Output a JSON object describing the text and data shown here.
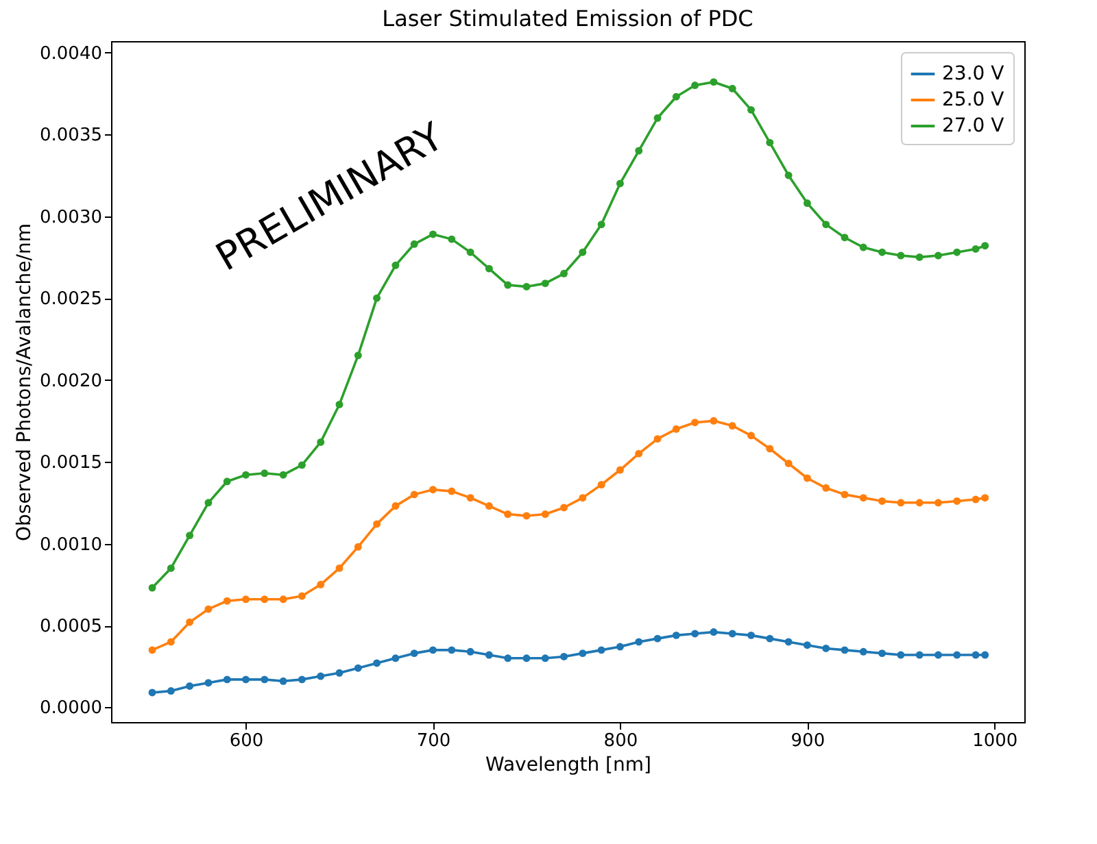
{
  "chart_data": {
    "type": "line",
    "title": "Laser Stimulated Emission of PDC",
    "xlabel": "Wavelength [nm]",
    "ylabel": "Observed Photons/Avalanche/nm",
    "x": [
      550,
      560,
      570,
      580,
      590,
      600,
      610,
      620,
      630,
      640,
      650,
      660,
      670,
      680,
      690,
      700,
      710,
      720,
      730,
      740,
      750,
      760,
      770,
      780,
      790,
      800,
      810,
      820,
      830,
      840,
      850,
      860,
      870,
      880,
      890,
      900,
      910,
      920,
      930,
      940,
      950,
      960,
      970,
      980,
      990,
      995
    ],
    "series": [
      {
        "name": "23.0 V",
        "color": "#1f77b4",
        "values": [
          9e-05,
          0.0001,
          0.00013,
          0.00015,
          0.00017,
          0.00017,
          0.00017,
          0.00016,
          0.00017,
          0.00019,
          0.00021,
          0.00024,
          0.00027,
          0.0003,
          0.00033,
          0.00035,
          0.00035,
          0.00034,
          0.00032,
          0.0003,
          0.0003,
          0.0003,
          0.00031,
          0.00033,
          0.00035,
          0.00037,
          0.0004,
          0.00042,
          0.00044,
          0.00045,
          0.00046,
          0.00045,
          0.00044,
          0.00042,
          0.0004,
          0.00038,
          0.00036,
          0.00035,
          0.00034,
          0.00033,
          0.00032,
          0.00032,
          0.00032,
          0.00032,
          0.00032,
          0.00032
        ]
      },
      {
        "name": "25.0 V",
        "color": "#ff7f0e",
        "values": [
          0.00035,
          0.0004,
          0.00052,
          0.0006,
          0.00065,
          0.00066,
          0.00066,
          0.00066,
          0.00068,
          0.00075,
          0.00085,
          0.00098,
          0.00112,
          0.00123,
          0.0013,
          0.00133,
          0.00132,
          0.00128,
          0.00123,
          0.00118,
          0.00117,
          0.00118,
          0.00122,
          0.00128,
          0.00136,
          0.00145,
          0.00155,
          0.00164,
          0.0017,
          0.00174,
          0.00175,
          0.00172,
          0.00166,
          0.00158,
          0.00149,
          0.0014,
          0.00134,
          0.0013,
          0.00128,
          0.00126,
          0.00125,
          0.00125,
          0.00125,
          0.00126,
          0.00127,
          0.00128
        ]
      },
      {
        "name": "27.0 V",
        "color": "#2ca02c",
        "values": [
          0.00073,
          0.00085,
          0.00105,
          0.00125,
          0.00138,
          0.00142,
          0.00143,
          0.00142,
          0.00148,
          0.00162,
          0.00185,
          0.00215,
          0.0025,
          0.0027,
          0.00283,
          0.00289,
          0.00286,
          0.00278,
          0.00268,
          0.00258,
          0.00257,
          0.00259,
          0.00265,
          0.00278,
          0.00295,
          0.0032,
          0.0034,
          0.0036,
          0.00373,
          0.0038,
          0.00382,
          0.00378,
          0.00365,
          0.00345,
          0.00325,
          0.00308,
          0.00295,
          0.00287,
          0.00281,
          0.00278,
          0.00276,
          0.00275,
          0.00276,
          0.00278,
          0.0028,
          0.00282
        ]
      }
    ],
    "xlim": [
      528,
      1016
    ],
    "xticks": [
      600,
      700,
      800,
      900,
      1000
    ],
    "ylim": [
      -9e-05,
      0.00407
    ],
    "yticks": [
      {
        "value": 0,
        "label": "0.0000"
      },
      {
        "value": 0.0005,
        "label": "0.0005"
      },
      {
        "value": 0.001,
        "label": "0.0010"
      },
      {
        "value": 0.0015,
        "label": "0.0015"
      },
      {
        "value": 0.002,
        "label": "0.0020"
      },
      {
        "value": 0.0025,
        "label": "0.0025"
      },
      {
        "value": 0.003,
        "label": "0.0030"
      },
      {
        "value": 0.0035,
        "label": "0.0035"
      },
      {
        "value": 0.004,
        "label": "0.0040"
      }
    ],
    "annotations": [
      "PRELIMINARY"
    ],
    "legend": "top right",
    "marker": "circle",
    "line_style": "solid",
    "grid": false
  }
}
